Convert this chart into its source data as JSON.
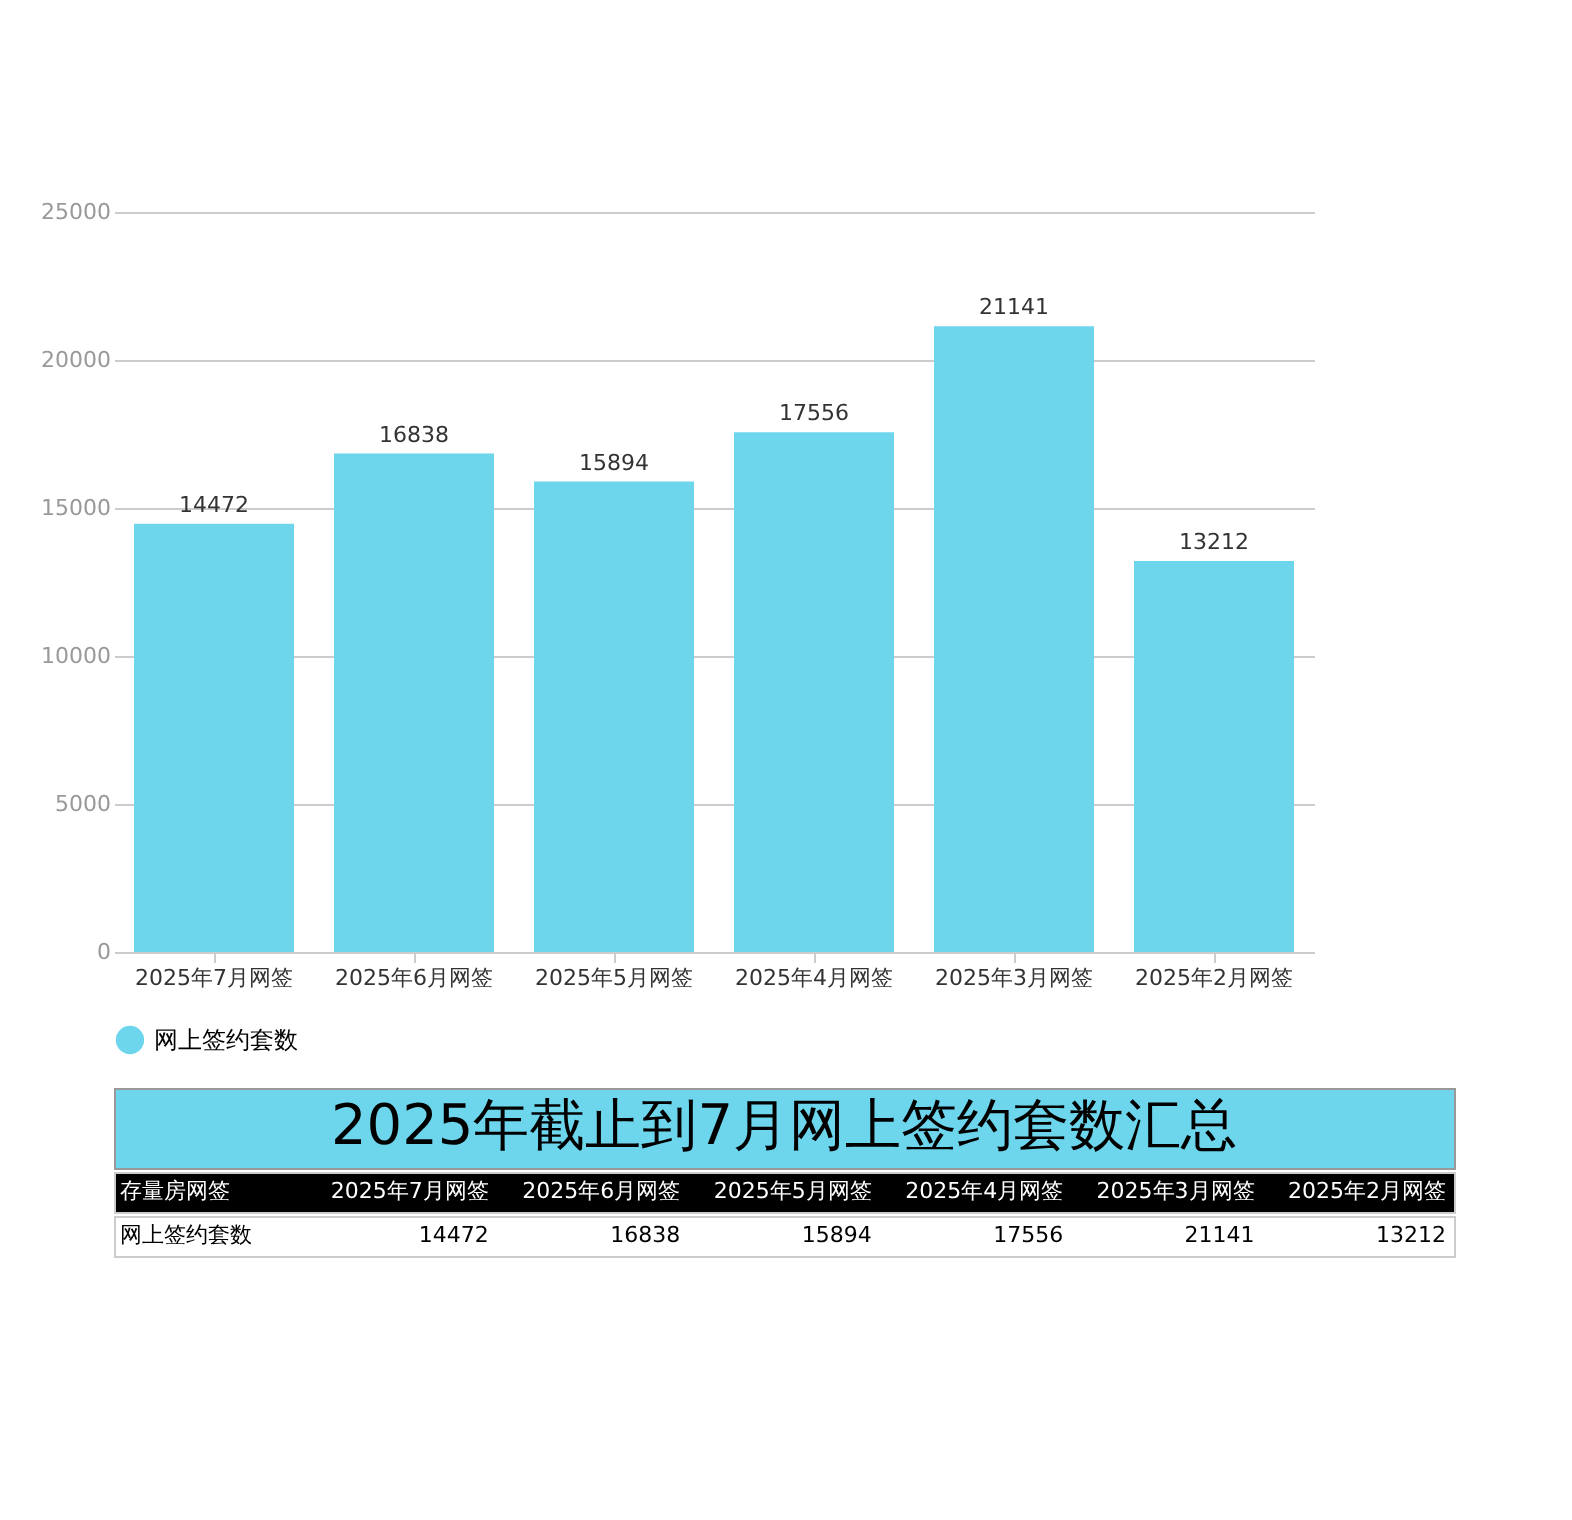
{
  "chart_data": {
    "type": "bar",
    "title": "2025年截止到7月网上签约套数汇总",
    "categories": [
      "2025年7月网签",
      "2025年6月网签",
      "2025年5月网签",
      "2025年4月网签",
      "2025年3月网签",
      "2025年2月网签"
    ],
    "series": [
      {
        "name": "网上签约套数",
        "color": "#6dd5ec",
        "values": [
          14472,
          16838,
          15894,
          17556,
          21141,
          13212
        ]
      }
    ],
    "ylim": [
      0,
      25000
    ],
    "yticks": [
      0,
      5000,
      10000,
      15000,
      20000,
      25000
    ],
    "grid": "y",
    "legend": "bottom",
    "data_labels": true,
    "annotations": [
      "存量房网签",
      "14472",
      "16838",
      "15894",
      "17556",
      "21141",
      "13212"
    ]
  }
}
